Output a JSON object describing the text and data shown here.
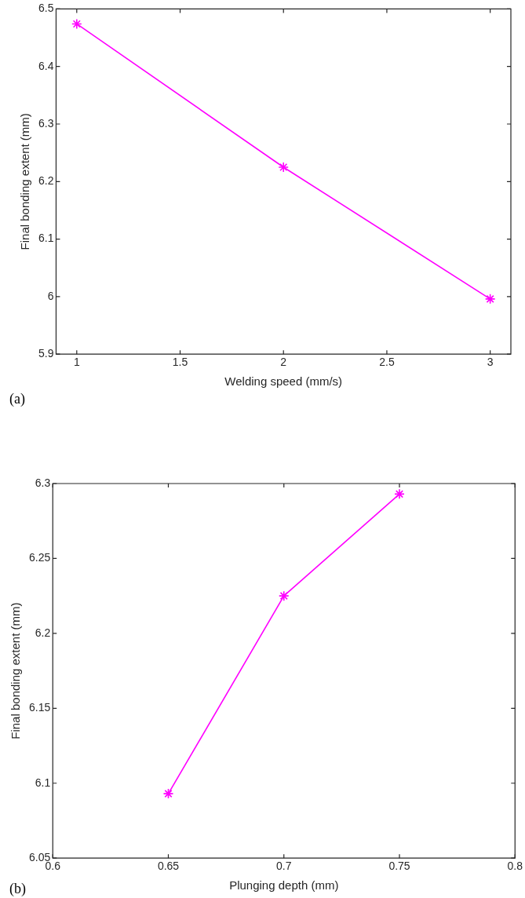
{
  "chart_data": [
    {
      "type": "line",
      "x": [
        1,
        2,
        3
      ],
      "series": [
        {
          "color": "#ff00ff",
          "values": [
            6.474,
            6.225,
            5.996
          ]
        }
      ],
      "xlabel": "Welding speed (mm/s)",
      "ylabel": "Final bonding extent (mm)",
      "xlim": [
        0.9,
        3.1
      ],
      "xticks": [
        1,
        1.5,
        2,
        2.5,
        3
      ],
      "ylim": [
        5.9,
        6.5
      ],
      "yticks": [
        5.9,
        6,
        6.1,
        6.2,
        6.3,
        6.4,
        6.5
      ],
      "marker": "cross",
      "line_style": "solid",
      "grid": false,
      "legend": false,
      "annotations": [
        "(a)"
      ]
    },
    {
      "type": "line",
      "x": [
        0.65,
        0.7,
        0.75
      ],
      "series": [
        {
          "color": "#ff00ff",
          "values": [
            6.093,
            6.225,
            6.293
          ]
        }
      ],
      "xlabel": "Plunging depth (mm)",
      "ylabel": "Final bonding extent (mm)",
      "xlim": [
        0.6,
        0.8
      ],
      "xticks": [
        0.6,
        0.65,
        0.7,
        0.75,
        0.8
      ],
      "ylim": [
        6.05,
        6.3
      ],
      "yticks": [
        6.05,
        6.1,
        6.15,
        6.2,
        6.25,
        6.3
      ],
      "marker": "cross",
      "line_style": "solid",
      "grid": false,
      "legend": false,
      "annotations": [
        "(b)"
      ]
    }
  ]
}
